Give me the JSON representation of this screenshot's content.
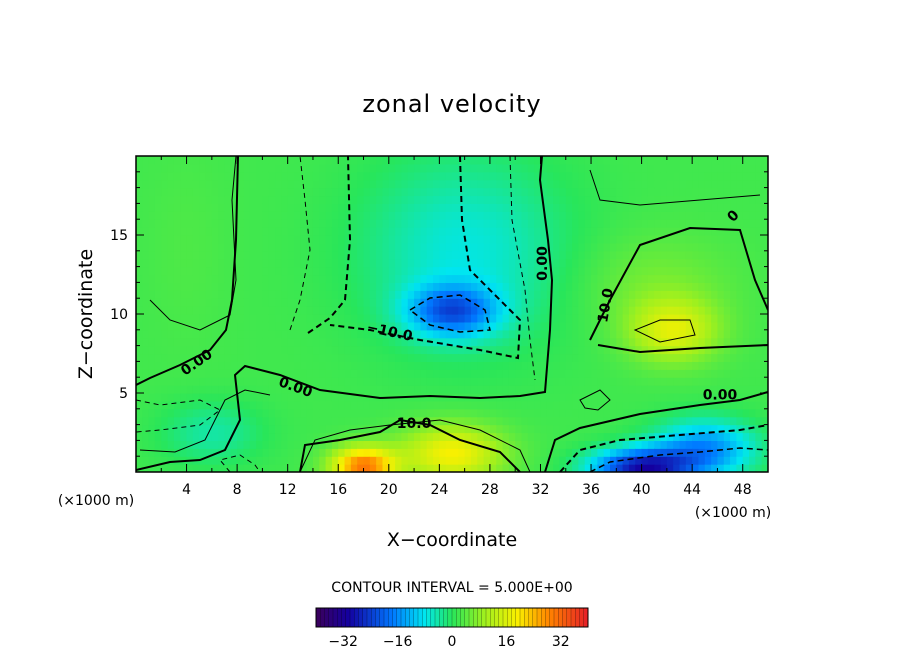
{
  "chart_data": {
    "type": "heatmap",
    "title": "zonal velocity",
    "xlabel": "X−coordinate",
    "ylabel": "Z−coordinate",
    "x_unit_left": "(×1000 m)",
    "x_unit_right": "(×1000 m)",
    "xlim": [
      0,
      50
    ],
    "ylim": [
      0,
      20
    ],
    "x_ticks": [
      4,
      8,
      12,
      16,
      20,
      24,
      28,
      32,
      36,
      40,
      44,
      48
    ],
    "y_ticks": [
      5,
      10,
      15
    ],
    "contour_interval_text": "CONTOUR INTERVAL = 5.000E+00",
    "colorbar": {
      "vmin": -40,
      "vmax": 40,
      "ticks": [
        -32,
        -16,
        0,
        16,
        32
      ],
      "tick_labels": [
        "−32",
        "−16",
        "0",
        "16",
        "32"
      ]
    },
    "contour_labels": [
      {
        "text": "0.00",
        "x": 5.0,
        "y": 6.7,
        "angle": -35
      },
      {
        "text": "0.00",
        "x": 12.5,
        "y": 5.1,
        "angle": 20
      },
      {
        "text": "−10.0",
        "x": 20.0,
        "y": 8.6,
        "angle": 12
      },
      {
        "text": "10.0",
        "x": 22.0,
        "y": 2.8,
        "angle": 0
      },
      {
        "text": "0.00",
        "x": 32.5,
        "y": 13.2,
        "angle": -90
      },
      {
        "text": "10.0",
        "x": 37.5,
        "y": 10.5,
        "angle": -80
      },
      {
        "text": "0.00",
        "x": 46.2,
        "y": 4.6,
        "angle": 0
      },
      {
        "text": "0",
        "x": 47.5,
        "y": 16.0,
        "angle": -45
      }
    ],
    "field_features": [
      {
        "x": 25,
        "y": 10.2,
        "value": -20,
        "sx": 3.5,
        "sy": 1.6
      },
      {
        "x": 26,
        "y": 14,
        "value": -9,
        "sx": 8,
        "sy": 6
      },
      {
        "x": 42.5,
        "y": 9.0,
        "value": 14,
        "sx": 3.5,
        "sy": 2.0
      },
      {
        "x": 41,
        "y": 12,
        "value": 4,
        "sx": 6,
        "sy": 3
      },
      {
        "x": 18,
        "y": 0.4,
        "value": 28,
        "sx": 2.5,
        "sy": 1.2
      },
      {
        "x": 25,
        "y": 1.2,
        "value": 17,
        "sx": 4,
        "sy": 1.8
      },
      {
        "x": 40,
        "y": 0.3,
        "value": -30,
        "sx": 4,
        "sy": 1.2
      },
      {
        "x": 45,
        "y": 1.5,
        "value": -18,
        "sx": 4,
        "sy": 1.8
      },
      {
        "x": 6,
        "y": 2.5,
        "value": -6,
        "sx": 4,
        "sy": 2
      },
      {
        "x": 4,
        "y": 14,
        "value": 1,
        "sx": 3,
        "sy": 6
      }
    ],
    "background_value": 2
  }
}
